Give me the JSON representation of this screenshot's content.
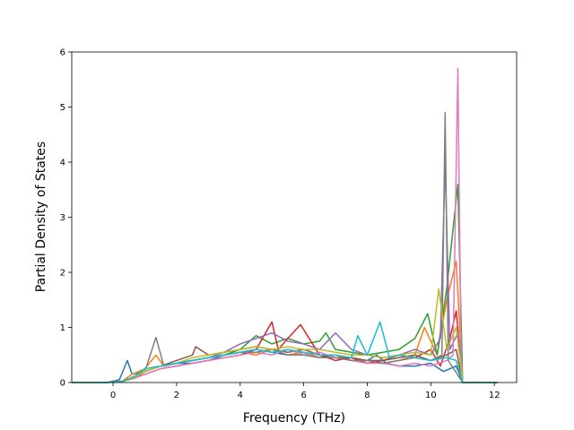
{
  "chart_data": {
    "type": "line",
    "title": "",
    "xlabel": "Frequency (THz)",
    "ylabel": "Partial Density of States",
    "xlim": [
      -1.3,
      12.7
    ],
    "ylim": [
      0,
      6
    ],
    "xticks": [
      0,
      2,
      4,
      6,
      8,
      10,
      12
    ],
    "yticks": [
      0,
      1,
      2,
      3,
      4,
      5,
      6
    ],
    "grid": false,
    "legend": "none",
    "colors": [
      "#1f77b4",
      "#ff7f0e",
      "#2ca02c",
      "#d62728",
      "#9467bd",
      "#8c564b",
      "#e377c2",
      "#7f7f7f",
      "#bcbd22",
      "#17becf"
    ],
    "series": [
      {
        "color": "#1f77b4",
        "x": [
          -1.3,
          -0.2,
          0.2,
          0.45,
          0.6,
          1.0,
          1.5,
          2.0,
          2.5,
          3.0,
          3.5,
          4.0,
          4.5,
          5.0,
          5.5,
          6.0,
          6.5,
          7.0,
          7.5,
          8.0,
          8.3,
          8.6,
          9.0,
          9.5,
          10.0,
          10.4,
          10.8,
          11.0,
          12.1
        ],
        "y": [
          0,
          0,
          0.05,
          0.4,
          0.15,
          0.2,
          0.3,
          0.35,
          0.35,
          0.4,
          0.5,
          0.55,
          0.6,
          0.55,
          0.5,
          0.55,
          0.45,
          0.45,
          0.4,
          0.4,
          0.5,
          0.35,
          0.3,
          0.3,
          0.35,
          0.2,
          0.3,
          0,
          0
        ]
      },
      {
        "color": "#ff7f0e",
        "x": [
          -1.3,
          -0.2,
          0.3,
          0.6,
          1.0,
          1.35,
          1.6,
          2.0,
          2.5,
          3.0,
          3.5,
          4.0,
          4.5,
          5.0,
          5.5,
          6.0,
          6.5,
          7.0,
          7.5,
          8.0,
          8.5,
          9.0,
          9.5,
          9.8,
          10.2,
          10.5,
          10.8,
          11.0,
          12.1
        ],
        "y": [
          0,
          0,
          0.03,
          0.15,
          0.25,
          0.5,
          0.3,
          0.35,
          0.4,
          0.45,
          0.5,
          0.55,
          0.5,
          0.6,
          0.5,
          0.55,
          0.45,
          0.5,
          0.4,
          0.4,
          0.35,
          0.4,
          0.5,
          1.0,
          0.5,
          1.5,
          2.2,
          0,
          0
        ]
      },
      {
        "color": "#2ca02c",
        "x": [
          -1.3,
          -0.2,
          0.3,
          0.7,
          1.0,
          1.5,
          2.0,
          2.5,
          3.0,
          3.5,
          4.0,
          4.5,
          5.0,
          5.5,
          6.0,
          6.5,
          6.7,
          7.0,
          7.5,
          8.0,
          8.5,
          9.0,
          9.5,
          9.9,
          10.2,
          10.5,
          10.85,
          11.0,
          12.1
        ],
        "y": [
          0,
          0,
          0.02,
          0.12,
          0.2,
          0.3,
          0.35,
          0.4,
          0.45,
          0.5,
          0.6,
          0.85,
          0.7,
          0.8,
          0.7,
          0.75,
          0.9,
          0.6,
          0.55,
          0.5,
          0.55,
          0.6,
          0.8,
          1.25,
          0.5,
          1.7,
          3.6,
          0,
          0
        ]
      },
      {
        "color": "#d62728",
        "x": [
          -1.3,
          -0.2,
          0.3,
          0.7,
          1.0,
          1.5,
          2.0,
          2.5,
          3.0,
          3.5,
          4.0,
          4.5,
          5.0,
          5.2,
          5.5,
          5.9,
          6.5,
          7.0,
          7.5,
          8.0,
          8.5,
          9.0,
          9.5,
          10.0,
          10.3,
          10.6,
          10.8,
          11.0,
          12.1
        ],
        "y": [
          0,
          0,
          0.02,
          0.1,
          0.15,
          0.25,
          0.3,
          0.35,
          0.4,
          0.45,
          0.5,
          0.6,
          1.1,
          0.6,
          0.8,
          1.05,
          0.5,
          0.4,
          0.45,
          0.35,
          0.4,
          0.5,
          0.45,
          0.6,
          0.3,
          0.8,
          1.3,
          0,
          0
        ]
      },
      {
        "color": "#9467bd",
        "x": [
          -1.3,
          -0.2,
          0.3,
          0.7,
          1.0,
          1.5,
          2.0,
          2.5,
          3.0,
          3.5,
          4.0,
          4.5,
          5.0,
          5.5,
          6.0,
          6.5,
          7.0,
          7.5,
          8.0,
          8.5,
          9.0,
          9.5,
          10.0,
          10.3,
          10.45,
          10.6,
          10.85,
          11.0,
          12.1
        ],
        "y": [
          0,
          0,
          0.02,
          0.1,
          0.2,
          0.3,
          0.35,
          0.4,
          0.45,
          0.55,
          0.7,
          0.8,
          0.9,
          0.75,
          0.7,
          0.6,
          0.9,
          0.6,
          0.5,
          0.45,
          0.5,
          0.6,
          0.5,
          0.8,
          4.0,
          0.6,
          0.9,
          0,
          0
        ]
      },
      {
        "color": "#8c564b",
        "x": [
          -1.3,
          -0.2,
          0.3,
          0.7,
          1.0,
          1.5,
          2.0,
          2.5,
          2.6,
          3.0,
          3.5,
          4.0,
          4.5,
          5.0,
          5.5,
          6.0,
          6.5,
          7.0,
          7.5,
          8.0,
          8.5,
          9.0,
          9.5,
          10.0,
          10.5,
          10.8,
          11.0,
          12.1
        ],
        "y": [
          0,
          0,
          0.02,
          0.1,
          0.2,
          0.3,
          0.4,
          0.5,
          0.65,
          0.5,
          0.55,
          0.6,
          0.65,
          0.6,
          0.55,
          0.6,
          0.5,
          0.45,
          0.45,
          0.4,
          0.4,
          0.45,
          0.5,
          0.4,
          0.5,
          0.6,
          0,
          0
        ]
      },
      {
        "color": "#e377c2",
        "x": [
          -1.3,
          -0.2,
          0.3,
          0.7,
          1.0,
          1.5,
          2.0,
          2.5,
          3.0,
          3.5,
          4.0,
          4.5,
          5.0,
          5.5,
          6.0,
          6.5,
          7.0,
          7.5,
          8.0,
          8.5,
          9.0,
          9.5,
          10.0,
          10.5,
          10.7,
          10.85,
          10.95,
          11.0,
          12.1
        ],
        "y": [
          0,
          0,
          0.02,
          0.08,
          0.15,
          0.25,
          0.3,
          0.35,
          0.4,
          0.45,
          0.5,
          0.55,
          0.5,
          0.6,
          0.5,
          0.55,
          0.45,
          0.4,
          0.35,
          0.35,
          0.3,
          0.35,
          0.3,
          0.4,
          0.5,
          5.7,
          0.5,
          0,
          0
        ]
      },
      {
        "color": "#7f7f7f",
        "x": [
          -1.3,
          -0.2,
          0.3,
          0.7,
          1.0,
          1.35,
          1.6,
          2.0,
          2.5,
          3.0,
          3.5,
          4.0,
          4.5,
          5.0,
          5.5,
          6.0,
          6.5,
          7.0,
          7.5,
          8.0,
          8.5,
          9.0,
          9.5,
          10.0,
          10.35,
          10.45,
          10.55,
          11.0,
          12.1
        ],
        "y": [
          0,
          0,
          0.02,
          0.1,
          0.2,
          0.82,
          0.3,
          0.35,
          0.4,
          0.45,
          0.5,
          0.55,
          0.55,
          0.6,
          0.5,
          0.5,
          0.45,
          0.45,
          0.4,
          0.4,
          0.35,
          0.4,
          0.45,
          0.4,
          0.5,
          4.9,
          0.4,
          0,
          0
        ]
      },
      {
        "color": "#bcbd22",
        "x": [
          -1.3,
          -0.2,
          0.3,
          0.7,
          1.0,
          1.5,
          2.0,
          2.5,
          3.0,
          3.5,
          4.0,
          4.5,
          5.0,
          5.5,
          6.0,
          6.5,
          7.0,
          7.5,
          8.0,
          8.5,
          9.0,
          9.5,
          10.0,
          10.25,
          10.5,
          10.8,
          11.0,
          12.1
        ],
        "y": [
          0,
          0,
          0.02,
          0.1,
          0.2,
          0.3,
          0.35,
          0.45,
          0.5,
          0.55,
          0.6,
          0.65,
          0.6,
          0.65,
          0.6,
          0.6,
          0.55,
          0.5,
          0.5,
          0.45,
          0.5,
          0.55,
          0.5,
          1.7,
          0.6,
          1.0,
          0,
          0
        ]
      },
      {
        "color": "#17becf",
        "x": [
          -1.3,
          -0.2,
          0.3,
          0.7,
          1.0,
          1.5,
          2.0,
          2.5,
          3.0,
          3.5,
          4.0,
          4.5,
          5.0,
          5.5,
          6.0,
          6.5,
          7.0,
          7.5,
          7.7,
          8.0,
          8.4,
          8.7,
          9.0,
          9.5,
          10.0,
          10.5,
          10.8,
          11.0,
          12.1
        ],
        "y": [
          0,
          0,
          0.02,
          0.12,
          0.25,
          0.3,
          0.35,
          0.4,
          0.45,
          0.5,
          0.55,
          0.6,
          0.55,
          0.6,
          0.55,
          0.5,
          0.5,
          0.45,
          0.85,
          0.5,
          1.1,
          0.45,
          0.5,
          0.45,
          0.4,
          0.45,
          0.4,
          0,
          0
        ]
      }
    ]
  }
}
